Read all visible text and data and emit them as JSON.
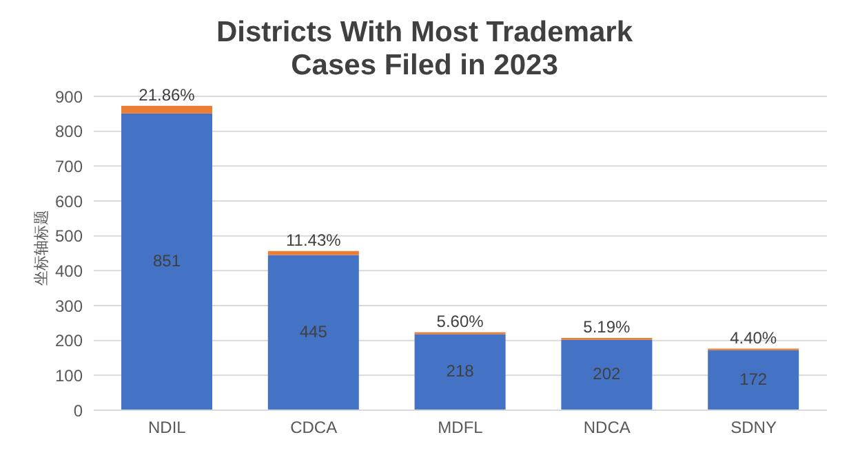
{
  "chart_data": {
    "type": "bar",
    "title": "Districts With Most Trademark Cases Filed in 2023",
    "ylabel": "坐标轴标题",
    "categories": [
      "NDIL",
      "CDCA",
      "MDFL",
      "NDCA",
      "SDNY"
    ],
    "stacked": true,
    "series": [
      {
        "color": "#4472c4",
        "values": [
          851,
          445,
          218,
          202,
          172
        ],
        "value_labels": [
          "851",
          "445",
          "218",
          "202",
          "172"
        ]
      },
      {
        "color": "#ed7d31",
        "values": [
          21.86,
          11.43,
          5.6,
          5.19,
          4.4
        ],
        "value_labels": [
          "21.86%",
          "11.43%",
          "5.60%",
          "5.19%",
          "4.40%"
        ]
      }
    ],
    "ylim": [
      0,
      900
    ],
    "yticks": [
      0,
      100,
      200,
      300,
      400,
      500,
      600,
      700,
      800,
      900
    ],
    "grid": "y",
    "legend": false
  }
}
